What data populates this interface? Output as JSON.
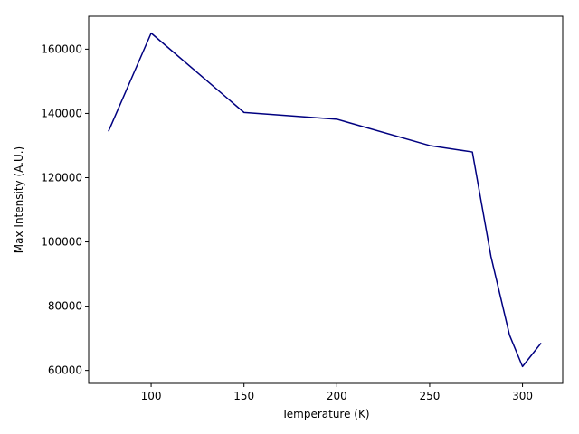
{
  "chart_data": {
    "type": "line",
    "title": "",
    "xlabel": "Temperature (K)",
    "ylabel": "Max Intensity (A.U.)",
    "xlim": [
      66.35,
      321.65
    ],
    "ylim": [
      55960,
      170240
    ],
    "xticks": [
      100,
      150,
      200,
      250,
      300
    ],
    "yticks": [
      60000,
      80000,
      100000,
      120000,
      140000,
      160000
    ],
    "grid": false,
    "legend": "none",
    "series": [
      {
        "color": "#000080",
        "x": [
          77,
          100,
          150,
          200,
          250,
          273,
          283,
          293,
          300,
          310
        ],
        "y": [
          134400,
          165000,
          140300,
          138200,
          130000,
          128000,
          95500,
          71000,
          61200,
          68500
        ]
      }
    ]
  }
}
